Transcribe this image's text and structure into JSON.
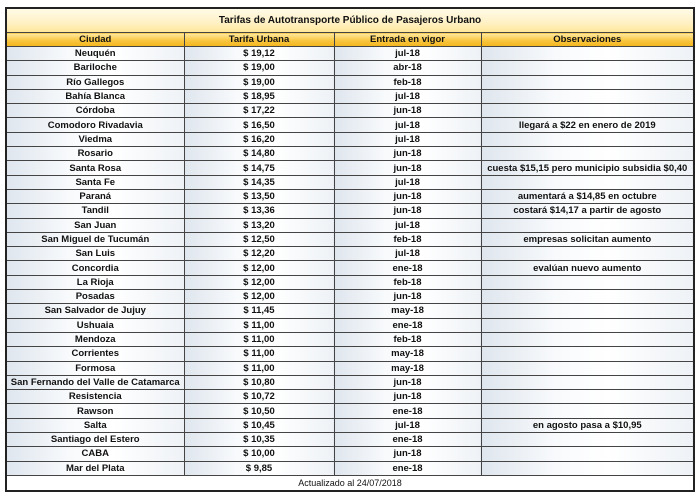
{
  "title": "Tarifas de Autotransporte Público de Pasajeros Urbano",
  "headers": [
    "Ciudad",
    "Tarifa Urbana",
    "Entrada en vigor",
    "Observaciones"
  ],
  "rows": [
    [
      "Neuquén",
      "$ 19,12",
      "jul-18",
      ""
    ],
    [
      "Bariloche",
      "$ 19,00",
      "abr-18",
      ""
    ],
    [
      "Río Gallegos",
      "$ 19,00",
      "feb-18",
      ""
    ],
    [
      "Bahía Blanca",
      "$ 18,95",
      "jul-18",
      ""
    ],
    [
      "Córdoba",
      "$ 17,22",
      "jun-18",
      ""
    ],
    [
      "Comodoro Rivadavia",
      "$ 16,50",
      "jul-18",
      "llegará a $22 en enero de 2019"
    ],
    [
      "Viedma",
      "$ 16,20",
      "jul-18",
      ""
    ],
    [
      "Rosario",
      "$ 14,80",
      "jun-18",
      ""
    ],
    [
      "Santa Rosa",
      "$ 14,75",
      "jun-18",
      "cuesta $15,15 pero municipio subsidia $0,40"
    ],
    [
      "Santa Fe",
      "$ 14,35",
      "jul-18",
      ""
    ],
    [
      "Paraná",
      "$ 13,50",
      "jun-18",
      "aumentará a $14,85 en octubre"
    ],
    [
      "Tandil",
      "$ 13,36",
      "jun-18",
      "costará $14,17 a partir de agosto"
    ],
    [
      "San Juan",
      "$ 13,20",
      "jul-18",
      ""
    ],
    [
      "San Miguel de Tucumán",
      "$ 12,50",
      "feb-18",
      "empresas solicitan aumento"
    ],
    [
      "San Luis",
      "$ 12,20",
      "jul-18",
      ""
    ],
    [
      "Concordia",
      "$ 12,00",
      "ene-18",
      "evalúan nuevo aumento"
    ],
    [
      "La Rioja",
      "$ 12,00",
      "feb-18",
      ""
    ],
    [
      "Posadas",
      "$ 12,00",
      "jun-18",
      ""
    ],
    [
      "San Salvador de Jujuy",
      "$ 11,45",
      "may-18",
      ""
    ],
    [
      "Ushuaia",
      "$ 11,00",
      "ene-18",
      ""
    ],
    [
      "Mendoza",
      "$ 11,00",
      "feb-18",
      ""
    ],
    [
      "Corrientes",
      "$ 11,00",
      "may-18",
      ""
    ],
    [
      "Formosa",
      "$ 11,00",
      "may-18",
      ""
    ],
    [
      "San Fernando del Valle de Catamarca",
      "$ 10,80",
      "jun-18",
      ""
    ],
    [
      "Resistencia",
      "$ 10,72",
      "jun-18",
      ""
    ],
    [
      "Rawson",
      "$ 10,50",
      "ene-18",
      ""
    ],
    [
      "Salta",
      "$ 10,45",
      "jul-18",
      "en agosto pasa a $10,95"
    ],
    [
      "Santiago del Estero",
      "$ 10,35",
      "ene-18",
      ""
    ],
    [
      "CABA",
      "$ 10,00",
      "jun-18",
      ""
    ],
    [
      "Mar del Plata",
      "$ 9,85",
      "ene-18",
      ""
    ]
  ],
  "footer": "Actualizado al 24/07/2018"
}
